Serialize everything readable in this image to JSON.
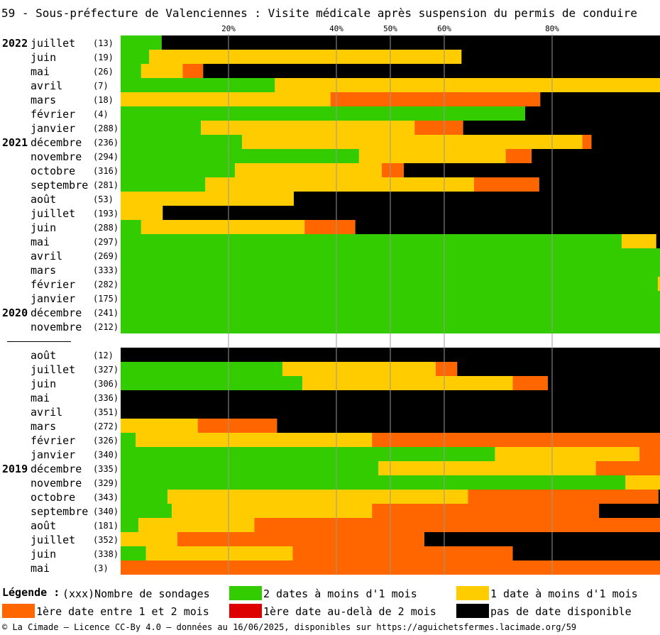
{
  "title": "59 - Sous-préfecture de Valenciennes : Visite médicale après suspension du permis de conduire",
  "colors": {
    "green": "#33cc00",
    "yellow": "#ffcc00",
    "orange": "#ff6600",
    "red": "#dd0000",
    "black": "#000000",
    "grid": "#999999"
  },
  "chart_data": {
    "type": "bar",
    "stacked": true,
    "orientation": "horizontal",
    "x_ticks": [
      "20%",
      "40%",
      "50%",
      "60%",
      "80%"
    ],
    "xlim": [
      0,
      100
    ],
    "series_names": [
      "2 dates à moins d'1 mois",
      "1 date à moins d'1 mois",
      "1ère date entre 1 et 2 mois",
      "1ère date au-delà de 2 mois",
      "pas de date disponible"
    ],
    "groups": [
      {
        "rows": [
          {
            "year": "2022",
            "month": "juillet",
            "count": "(13)",
            "values": [
              7.6,
              0,
              0,
              0,
              92.4
            ]
          },
          {
            "year": "",
            "month": "juin",
            "count": "(19)",
            "values": [
              5.3,
              57.9,
              0,
              0,
              36.8
            ]
          },
          {
            "year": "",
            "month": "mai",
            "count": "(26)",
            "values": [
              3.8,
              7.7,
              3.8,
              0,
              84.7
            ]
          },
          {
            "year": "",
            "month": "avril",
            "count": "(7)",
            "values": [
              28.6,
              71.4,
              0,
              0,
              0
            ]
          },
          {
            "year": "",
            "month": "mars",
            "count": "(18)",
            "values": [
              0,
              38.9,
              38.9,
              0,
              22.2
            ]
          },
          {
            "year": "",
            "month": "février",
            "count": "(4)",
            "values": [
              75,
              0,
              0,
              0,
              25
            ]
          },
          {
            "year": "",
            "month": "janvier",
            "count": "(288)",
            "values": [
              14.9,
              39.6,
              9.0,
              0,
              36.5
            ]
          },
          {
            "year": "2021",
            "month": "décembre",
            "count": "(236)",
            "values": [
              22.5,
              63.1,
              1.7,
              0,
              12.7
            ]
          },
          {
            "year": "",
            "month": "novembre",
            "count": "(294)",
            "values": [
              44.2,
              27.2,
              4.8,
              0,
              23.8
            ]
          },
          {
            "year": "",
            "month": "octobre",
            "count": "(316)",
            "values": [
              21.2,
              27.2,
              4.1,
              0,
              47.5
            ]
          },
          {
            "year": "",
            "month": "septembre",
            "count": "(281)",
            "values": [
              15.7,
              49.8,
              12.1,
              0,
              22.4
            ]
          },
          {
            "year": "",
            "month": "août",
            "count": "(53)",
            "values": [
              0,
              32.1,
              0,
              0,
              67.9
            ]
          },
          {
            "year": "",
            "month": "juillet",
            "count": "(193)",
            "values": [
              0,
              7.8,
              0,
              0,
              92.2
            ]
          },
          {
            "year": "",
            "month": "juin",
            "count": "(288)",
            "values": [
              3.8,
              30.3,
              9.4,
              0,
              56.5
            ]
          },
          {
            "year": "",
            "month": "mai",
            "count": "(297)",
            "values": [
              92.9,
              6.4,
              0,
              0,
              0.7
            ]
          },
          {
            "year": "",
            "month": "avril",
            "count": "(269)",
            "values": [
              100,
              0,
              0,
              0,
              0
            ]
          },
          {
            "year": "",
            "month": "mars",
            "count": "(333)",
            "values": [
              100,
              0,
              0,
              0,
              0
            ]
          },
          {
            "year": "",
            "month": "février",
            "count": "(282)",
            "values": [
              99.6,
              0.4,
              0,
              0,
              0
            ]
          },
          {
            "year": "",
            "month": "janvier",
            "count": "(175)",
            "values": [
              100,
              0,
              0,
              0,
              0
            ]
          },
          {
            "year": "2020",
            "month": "décembre",
            "count": "(241)",
            "values": [
              100,
              0,
              0,
              0,
              0
            ]
          },
          {
            "year": "",
            "month": "novembre",
            "count": "(212)",
            "values": [
              100,
              0,
              0,
              0,
              0
            ]
          }
        ]
      },
      {
        "rows": [
          {
            "year": "",
            "month": "août",
            "count": "(12)",
            "values": [
              0,
              0,
              0,
              0,
              100
            ]
          },
          {
            "year": "",
            "month": "juillet",
            "count": "(327)",
            "values": [
              30.0,
              28.4,
              4.0,
              0,
              37.6
            ]
          },
          {
            "year": "",
            "month": "juin",
            "count": "(306)",
            "values": [
              33.7,
              39.0,
              6.5,
              0,
              20.8
            ]
          },
          {
            "year": "",
            "month": "mai",
            "count": "(336)",
            "values": [
              0,
              0,
              0,
              0,
              100
            ]
          },
          {
            "year": "",
            "month": "avril",
            "count": "(351)",
            "values": [
              0,
              0,
              0,
              0,
              100
            ]
          },
          {
            "year": "",
            "month": "mars",
            "count": "(272)",
            "values": [
              0,
              14.3,
              14.7,
              0,
              71.0
            ]
          },
          {
            "year": "",
            "month": "février",
            "count": "(326)",
            "values": [
              2.8,
              43.8,
              53.4,
              0,
              0
            ]
          },
          {
            "year": "",
            "month": "janvier",
            "count": "(340)",
            "values": [
              69.4,
              26.8,
              3.8,
              0,
              0
            ]
          },
          {
            "year": "2019",
            "month": "décembre",
            "count": "(335)",
            "values": [
              47.8,
              40.3,
              11.9,
              0,
              0
            ]
          },
          {
            "year": "",
            "month": "novembre",
            "count": "(329)",
            "values": [
              93.6,
              6.4,
              0,
              0,
              0
            ]
          },
          {
            "year": "",
            "month": "octobre",
            "count": "(343)",
            "values": [
              8.7,
              55.7,
              35.3,
              0,
              0.3
            ]
          },
          {
            "year": "",
            "month": "septembre",
            "count": "(340)",
            "values": [
              9.5,
              37.1,
              42.1,
              0,
              11.3
            ]
          },
          {
            "year": "",
            "month": "août",
            "count": "(181)",
            "values": [
              3.3,
              21.5,
              75.2,
              0,
              0
            ]
          },
          {
            "year": "",
            "month": "juillet",
            "count": "(352)",
            "values": [
              0,
              10.5,
              45.8,
              0,
              43.7
            ]
          },
          {
            "year": "",
            "month": "juin",
            "count": "(338)",
            "values": [
              4.7,
              27.2,
              40.8,
              0,
              27.3
            ]
          },
          {
            "year": "",
            "month": "mai",
            "count": "(3)",
            "values": [
              0,
              0,
              100,
              0,
              0
            ]
          }
        ]
      }
    ]
  },
  "legend": {
    "title": "Légende :",
    "count_label": "(xxx)Nombre de sondages",
    "items": [
      {
        "label": "2 dates à moins d'1 mois",
        "color": "#33cc00"
      },
      {
        "label": "1 date à moins d'1 mois",
        "color": "#ffcc00"
      },
      {
        "label": "1ère date entre 1 et 2 mois",
        "color": "#ff6600"
      },
      {
        "label": "1ère date au-delà de 2 mois",
        "color": "#dd0000"
      },
      {
        "label": "pas de date disponible",
        "color": "#000000"
      }
    ]
  },
  "footer": "© La Cimade – Licence CC-By 4.0 – données au 16/06/2025, disponibles sur https://aguichetsfermes.lacimade.org/59"
}
